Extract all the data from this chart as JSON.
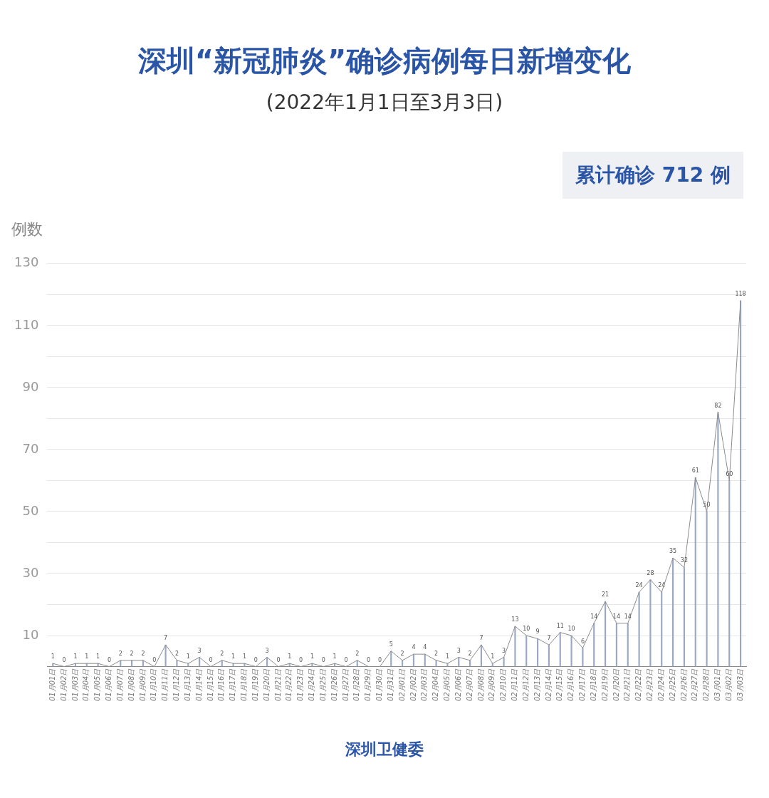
{
  "chart_data": {
    "type": "line",
    "title": "深圳“新冠肺炎”确诊病例每日新增变化",
    "subtitle": "(2022年1月1日至3月3日)",
    "ylabel": "例数",
    "annotations": [
      "累计确诊 712 例",
      "深圳卫健委"
    ],
    "categories": [
      "01月01日",
      "01月02日",
      "01月03日",
      "01月04日",
      "01月05日",
      "01月06日",
      "01月07日",
      "01月08日",
      "01月09日",
      "01月10日",
      "01月11日",
      "01月12日",
      "01月13日",
      "01月14日",
      "01月15日",
      "01月16日",
      "01月17日",
      "01月18日",
      "01月19日",
      "01月20日",
      "01月21日",
      "01月22日",
      "01月23日",
      "01月24日",
      "01月25日",
      "01月26日",
      "01月27日",
      "01月28日",
      "01月29日",
      "01月30日",
      "01月31日",
      "02月01日",
      "02月02日",
      "02月03日",
      "02月04日",
      "02月05日",
      "02月06日",
      "02月07日",
      "02月08日",
      "02月09日",
      "02月10日",
      "02月11日",
      "02月12日",
      "02月13日",
      "02月14日",
      "02月15日",
      "02月16日",
      "02月17日",
      "02月18日",
      "02月19日",
      "02月20日",
      "02月21日",
      "02月22日",
      "02月23日",
      "02月24日",
      "02月25日",
      "02月26日",
      "02月27日",
      "02月28日",
      "03月01日",
      "03月02日",
      "03月03日"
    ],
    "series": [
      {
        "type": "bar",
        "color": "#9aa8c4",
        "values": [
          1,
          0,
          1,
          1,
          1,
          0,
          2,
          2,
          2,
          0,
          7,
          2,
          1,
          3,
          0,
          2,
          1,
          1,
          0,
          3,
          0,
          1,
          0,
          1,
          0,
          1,
          0,
          2,
          0,
          0,
          5,
          2,
          4,
          4,
          2,
          1,
          3,
          2,
          7,
          1,
          3,
          13,
          10,
          9,
          7,
          11,
          10,
          6,
          14,
          21,
          14,
          14,
          24,
          28,
          24,
          35,
          32,
          61,
          50,
          82,
          60,
          118
        ],
        "value_labels": [
          "1",
          "0",
          "1",
          "1",
          "1",
          "0",
          "2",
          "2",
          "2",
          "0",
          "7",
          "2",
          "1",
          "3",
          "0",
          "2",
          "1",
          "1",
          "0",
          "3",
          "0",
          "1",
          "0",
          "1",
          "0",
          "1",
          "0",
          "2",
          "0",
          "0",
          "5",
          "2",
          "4",
          "4",
          "2",
          "1",
          "3",
          "2",
          "7",
          "1",
          "3",
          "13",
          "10",
          "9",
          "7",
          "11",
          "10",
          "6",
          "14",
          "21",
          "14",
          "14",
          "24",
          "28",
          "24",
          "35",
          "32",
          "61",
          "50",
          "82",
          "60",
          "118"
        ]
      },
      {
        "color": "#8c8c8c",
        "values": [
          1,
          0,
          1,
          1,
          1,
          0,
          2,
          2,
          2,
          0,
          7,
          2,
          1,
          3,
          0,
          2,
          1,
          1,
          0,
          3,
          0,
          1,
          0,
          1,
          0,
          1,
          0,
          2,
          0,
          0,
          5,
          2,
          4,
          4,
          2,
          1,
          3,
          2,
          7,
          1,
          3,
          13,
          10,
          9,
          7,
          11,
          10,
          6,
          14,
          21,
          14,
          14,
          24,
          28,
          24,
          35,
          32,
          61,
          50,
          82,
          60,
          118
        ]
      }
    ],
    "ylim": [
      0,
      130
    ],
    "yticks": [
      {
        "value": 0,
        "label": null
      },
      10,
      {
        "value": 20,
        "label": null
      },
      30,
      {
        "value": 40,
        "label": null
      },
      50,
      {
        "value": 60,
        "label": null
      },
      70,
      {
        "value": 80,
        "label": null
      },
      90,
      {
        "value": 100,
        "label": null
      },
      110,
      {
        "value": 120,
        "label": null
      },
      130
    ],
    "grid": "y",
    "legend": false,
    "marker": "none",
    "line_style": "solid"
  }
}
